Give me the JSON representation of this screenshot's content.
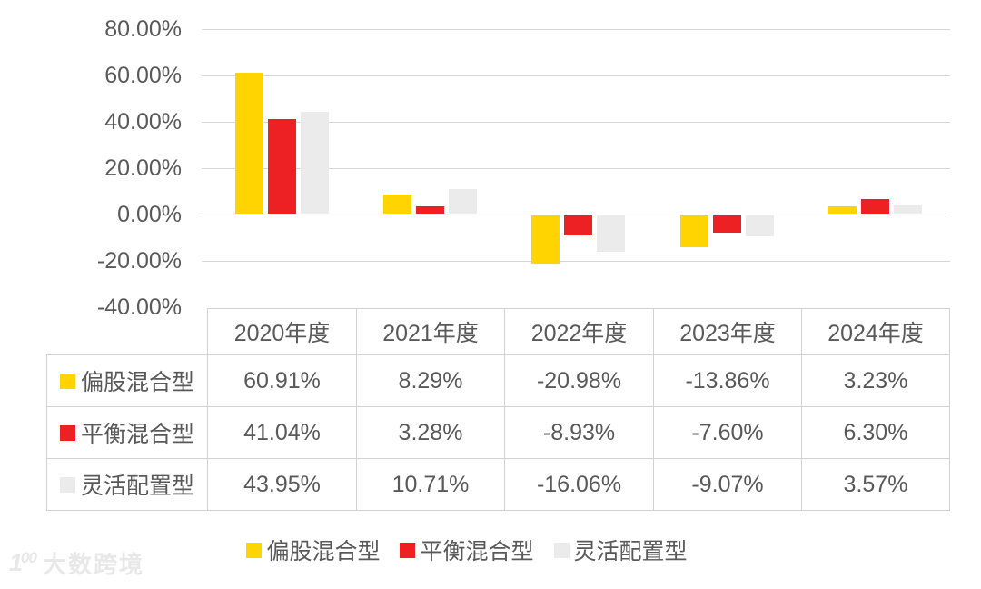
{
  "colors": {
    "yellow": "#FFD400",
    "red": "#ED2024",
    "gray": "#EBEBEB",
    "grid": "#D6D6D6",
    "text": "#595959",
    "table_border": "#D2D2D2",
    "watermark": "#E8E8E8"
  },
  "chart_data": {
    "type": "bar",
    "title": "",
    "xlabel": "",
    "ylabel": "",
    "categories": [
      "2020年度",
      "2021年度",
      "2022年度",
      "2023年度",
      "2024年度"
    ],
    "series": [
      {
        "name": "偏股混合型",
        "color_key": "yellow",
        "values": [
          60.91,
          8.29,
          -20.98,
          -13.86,
          3.23
        ]
      },
      {
        "name": "平衡混合型",
        "color_key": "red",
        "values": [
          41.04,
          3.28,
          -8.93,
          -7.6,
          6.3
        ]
      },
      {
        "name": "灵活配置型",
        "color_key": "gray",
        "values": [
          43.95,
          10.71,
          -16.06,
          -9.07,
          3.57
        ]
      }
    ],
    "value_labels": [
      [
        "60.91%",
        "8.29%",
        "-20.98%",
        "-13.86%",
        "3.23%"
      ],
      [
        "41.04%",
        "3.28%",
        "-8.93%",
        "-7.60%",
        "6.30%"
      ],
      [
        "43.95%",
        "10.71%",
        "-16.06%",
        "-9.07%",
        "3.57%"
      ]
    ],
    "y_ticks": [
      "80.00%",
      "60.00%",
      "40.00%",
      "20.00%",
      "0.00%",
      "-20.00%",
      "-40.00%"
    ],
    "y_tick_values": [
      80,
      60,
      40,
      20,
      0,
      -20,
      -40
    ],
    "ylim": [
      -40,
      80
    ],
    "grid": true,
    "legend_position": "bottom"
  },
  "watermark": {
    "logo_prefix": "1",
    "logo_suffix": "00",
    "text": "大数跨境"
  }
}
